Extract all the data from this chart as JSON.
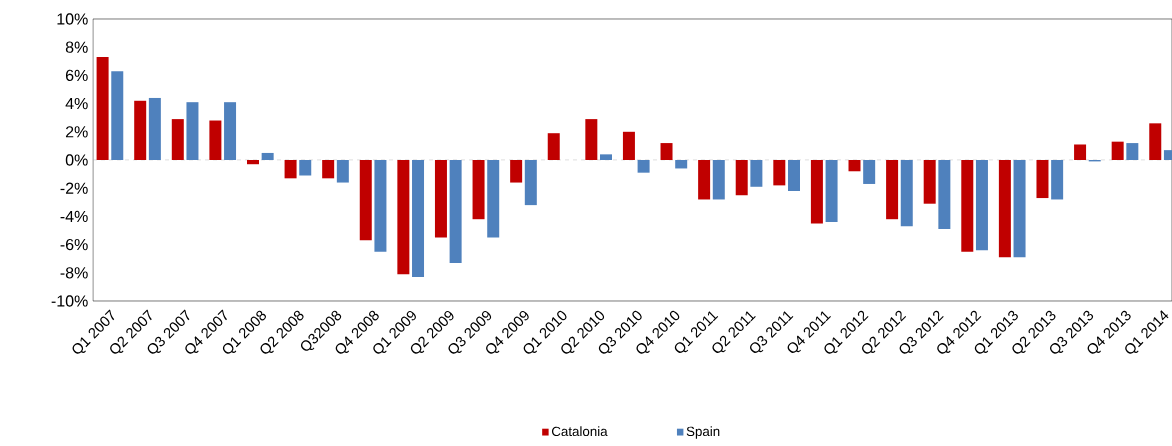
{
  "chart_data": {
    "type": "bar",
    "categories": [
      "Q1 2007",
      "Q2 2007",
      "Q3 2007",
      "Q4 2007",
      "Q1 2008",
      "Q2 2008",
      "Q32008",
      "Q4 2008",
      "Q1 2009",
      "Q2 2009",
      "Q3 2009",
      "Q4 2009",
      "Q1 2010",
      "Q2 2010",
      "Q3 2010",
      "Q4 2010",
      "Q1 2011",
      "Q2 2011",
      "Q3 2011",
      "Q4 2011",
      "Q1 2012",
      "Q2 2012",
      "Q3 2012",
      "Q4 2012",
      "Q1 2013",
      "Q2 2013",
      "Q3 2013",
      "Q4 2013",
      "Q1 2014"
    ],
    "series": [
      {
        "name": "Catalonia",
        "color": "#c00000",
        "values": [
          7.3,
          4.2,
          2.9,
          2.8,
          -0.3,
          -1.3,
          -1.3,
          -5.7,
          -8.1,
          -5.5,
          -4.2,
          -1.6,
          1.9,
          2.9,
          2.0,
          1.2,
          -2.8,
          -2.5,
          -1.8,
          -4.5,
          -0.8,
          -4.2,
          -3.1,
          -6.5,
          -6.9,
          -2.7,
          1.1,
          1.3,
          2.6
        ]
      },
      {
        "name": "Spain",
        "color": "#4f81bd",
        "values": [
          6.3,
          4.4,
          4.1,
          4.1,
          0.5,
          -1.1,
          -1.6,
          -6.5,
          -8.3,
          -7.3,
          -5.5,
          -3.2,
          0,
          0.4,
          -0.9,
          -0.6,
          -2.8,
          -1.9,
          -2.2,
          -4.4,
          -1.7,
          -4.7,
          -4.9,
          -6.4,
          -6.9,
          -2.8,
          -0.1,
          1.2,
          0.7
        ]
      }
    ],
    "ylim": [
      -10,
      10
    ],
    "yticks": [
      {
        "value": -10,
        "label": "-10%"
      },
      {
        "value": -8,
        "label": "-8%"
      },
      {
        "value": -6,
        "label": "-6%"
      },
      {
        "value": -4,
        "label": "-4%"
      },
      {
        "value": -2,
        "label": "-2%"
      },
      {
        "value": 0,
        "label": "0%"
      },
      {
        "value": 2,
        "label": "2%"
      },
      {
        "value": 4,
        "label": "4%"
      },
      {
        "value": 6,
        "label": "6%"
      },
      {
        "value": 8,
        "label": "8%"
      },
      {
        "value": 10,
        "label": "10%"
      }
    ],
    "ref_lines": [
      {
        "axis": "y",
        "value": 0,
        "color": "#a0a0a0",
        "line_style": "dashed"
      }
    ],
    "grid": false,
    "legend": "bottom"
  }
}
